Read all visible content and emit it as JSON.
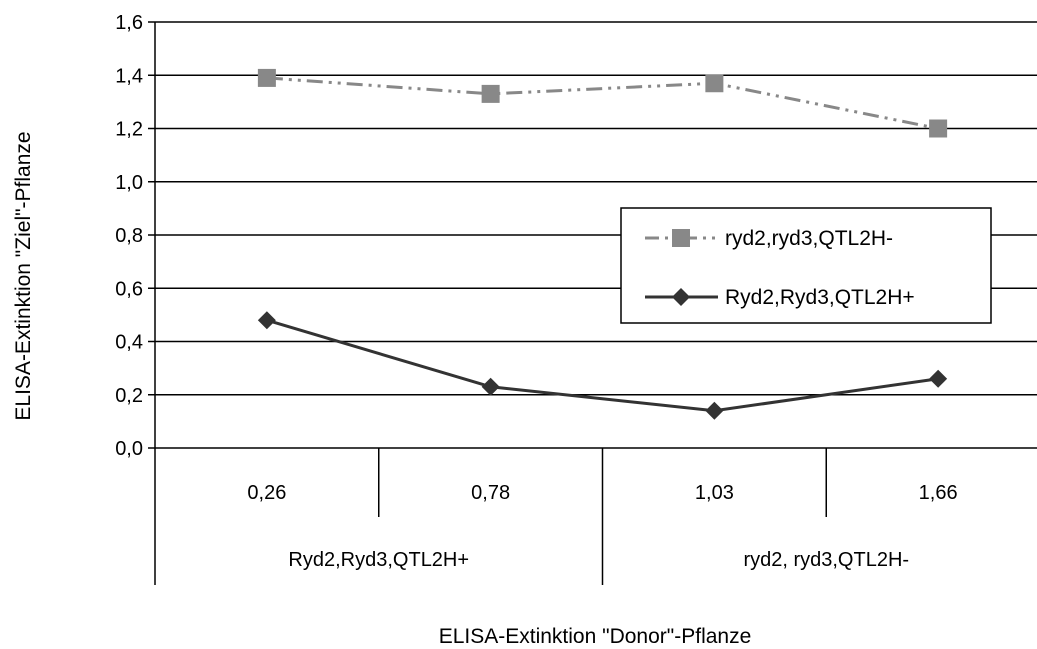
{
  "chart_data": {
    "type": "line",
    "xlabel": "ELISA-Extinktion \"Donor\"-Pflanze",
    "ylabel": "ELISA-Extinktion \"Ziel\"-Pflanze",
    "ylim": [
      0.0,
      1.6
    ],
    "ytick_step": 0.2,
    "yticks": [
      "0,0",
      "0,2",
      "0,4",
      "0,6",
      "0,8",
      "1,0",
      "1,2",
      "1,4",
      "1,6"
    ],
    "categories": [
      "0,26",
      "0,78",
      "1,03",
      "1,66"
    ],
    "category_groups": [
      {
        "label": "Ryd2,Ryd3,QTL2H+",
        "span": 2
      },
      {
        "label": "ryd2, ryd3,QTL2H-",
        "span": 2
      }
    ],
    "grid": true,
    "legend_position": "right",
    "series": [
      {
        "name": "ryd2,ryd3,QTL2H-",
        "values": [
          1.39,
          1.33,
          1.37,
          1.2
        ],
        "color": "#888888",
        "marker": "square",
        "line_style": "dash-dot-dot"
      },
      {
        "name": "Ryd2,Ryd3,QTL2H+",
        "values": [
          0.48,
          0.23,
          0.14,
          0.26
        ],
        "color": "#333333",
        "marker": "diamond",
        "line_style": "solid"
      }
    ]
  }
}
